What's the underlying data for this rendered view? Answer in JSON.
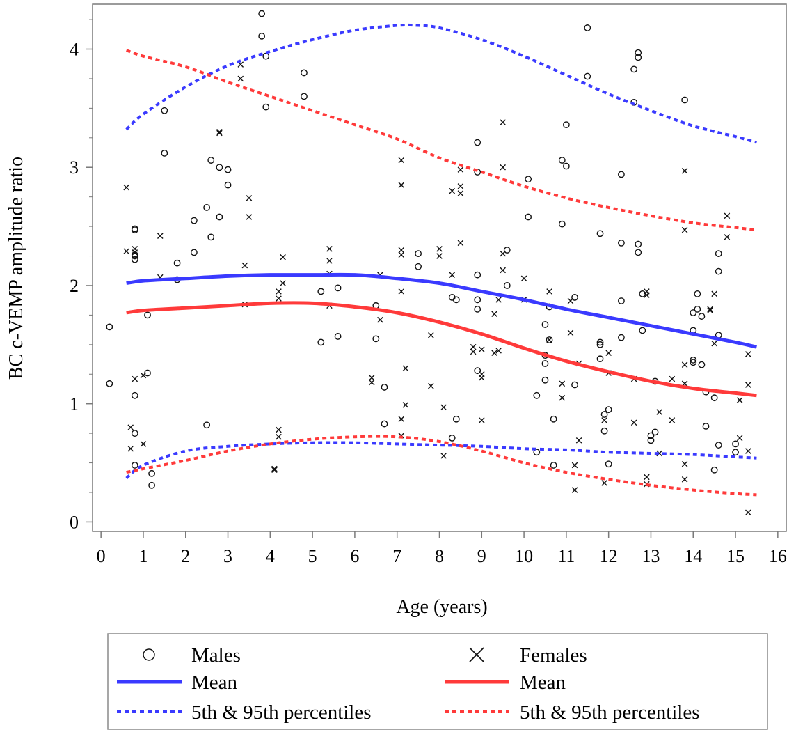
{
  "chart_data": {
    "type": "scatter",
    "title": "",
    "xlabel": "Age (years)",
    "ylabel": "BC c-VEMP amplitude ratio",
    "xlim": [
      -0.2,
      16.2
    ],
    "ylim": [
      -0.08,
      4.38
    ],
    "xticks": [
      "0",
      "1",
      "2",
      "3",
      "4",
      "5",
      "6",
      "7",
      "8",
      "9",
      "10",
      "11",
      "12",
      "13",
      "14",
      "15",
      "16"
    ],
    "yticks": [
      "0",
      "1",
      "2",
      "3",
      "4"
    ],
    "colors": {
      "blue": "#3a3aff",
      "red": "#ff3a3a",
      "marker": "#111111"
    },
    "legend": {
      "placement": "bottom",
      "entries": [
        {
          "label": "Males",
          "kind": "circle",
          "color": "#111111"
        },
        {
          "label": "Females",
          "kind": "cross",
          "color": "#111111"
        },
        {
          "label": "Mean",
          "kind": "solid",
          "color": "#3a3aff"
        },
        {
          "label": "Mean",
          "kind": "solid",
          "color": "#ff3a3a"
        },
        {
          "label": "5th & 95th percentiles",
          "kind": "dashed",
          "color": "#3a3aff"
        },
        {
          "label": "5th & 95th percentiles",
          "kind": "dashed",
          "color": "#ff3a3a"
        }
      ]
    },
    "series": [
      {
        "name": "Males",
        "kind": "circle",
        "points": [
          [
            0.2,
            1.65
          ],
          [
            0.2,
            1.17
          ],
          [
            0.8,
            2.48
          ],
          [
            0.8,
            2.47
          ],
          [
            0.8,
            2.26
          ],
          [
            0.8,
            2.25
          ],
          [
            0.8,
            2.22
          ],
          [
            0.8,
            1.07
          ],
          [
            0.8,
            0.75
          ],
          [
            0.8,
            0.48
          ],
          [
            1.1,
            1.75
          ],
          [
            1.1,
            1.26
          ],
          [
            1.2,
            0.41
          ],
          [
            1.2,
            0.31
          ],
          [
            1.5,
            3.48
          ],
          [
            1.5,
            3.12
          ],
          [
            1.8,
            2.19
          ],
          [
            1.8,
            2.05
          ],
          [
            2.2,
            2.55
          ],
          [
            2.2,
            2.28
          ],
          [
            2.5,
            2.66
          ],
          [
            2.5,
            0.82
          ],
          [
            2.6,
            3.06
          ],
          [
            2.6,
            2.41
          ],
          [
            2.8,
            3.0
          ],
          [
            2.8,
            2.58
          ],
          [
            3.0,
            2.98
          ],
          [
            3.0,
            2.85
          ],
          [
            3.8,
            4.3
          ],
          [
            3.8,
            4.11
          ],
          [
            3.9,
            3.94
          ],
          [
            3.9,
            3.51
          ],
          [
            4.8,
            3.8
          ],
          [
            4.8,
            3.6
          ],
          [
            5.2,
            1.95
          ],
          [
            5.2,
            1.52
          ],
          [
            5.6,
            1.98
          ],
          [
            5.6,
            1.57
          ],
          [
            6.5,
            1.83
          ],
          [
            6.5,
            1.55
          ],
          [
            6.7,
            1.14
          ],
          [
            6.7,
            0.83
          ],
          [
            7.5,
            2.27
          ],
          [
            7.5,
            2.16
          ],
          [
            8.3,
            1.9
          ],
          [
            8.3,
            0.71
          ],
          [
            8.4,
            1.88
          ],
          [
            8.4,
            0.87
          ],
          [
            8.9,
            3.21
          ],
          [
            8.9,
            2.96
          ],
          [
            8.9,
            2.09
          ],
          [
            8.9,
            1.88
          ],
          [
            8.9,
            1.8
          ],
          [
            8.9,
            1.28
          ],
          [
            9.6,
            2.3
          ],
          [
            9.6,
            2.0
          ],
          [
            10.1,
            2.9
          ],
          [
            10.1,
            2.58
          ],
          [
            10.3,
            1.07
          ],
          [
            10.3,
            0.59
          ],
          [
            10.5,
            1.67
          ],
          [
            10.5,
            1.41
          ],
          [
            10.5,
            1.34
          ],
          [
            10.5,
            1.2
          ],
          [
            10.6,
            1.82
          ],
          [
            10.6,
            1.54
          ],
          [
            10.7,
            0.87
          ],
          [
            10.7,
            0.48
          ],
          [
            10.9,
            3.06
          ],
          [
            10.9,
            2.52
          ],
          [
            11.0,
            3.36
          ],
          [
            11.0,
            3.01
          ],
          [
            11.2,
            1.9
          ],
          [
            11.2,
            1.16
          ],
          [
            11.5,
            4.18
          ],
          [
            11.5,
            3.77
          ],
          [
            11.8,
            2.44
          ],
          [
            11.8,
            1.52
          ],
          [
            11.8,
            1.5
          ],
          [
            11.8,
            1.38
          ],
          [
            11.9,
            0.91
          ],
          [
            11.9,
            0.77
          ],
          [
            12.0,
            0.95
          ],
          [
            12.0,
            0.49
          ],
          [
            12.3,
            2.94
          ],
          [
            12.3,
            2.36
          ],
          [
            12.3,
            1.87
          ],
          [
            12.3,
            1.56
          ],
          [
            12.6,
            3.83
          ],
          [
            12.6,
            3.55
          ],
          [
            12.7,
            3.97
          ],
          [
            12.7,
            3.93
          ],
          [
            12.7,
            2.35
          ],
          [
            12.7,
            2.28
          ],
          [
            12.8,
            1.93
          ],
          [
            12.8,
            1.62
          ],
          [
            13.0,
            0.73
          ],
          [
            13.0,
            0.69
          ],
          [
            13.1,
            1.19
          ],
          [
            13.1,
            0.76
          ],
          [
            13.8,
            3.57
          ],
          [
            14.0,
            1.77
          ],
          [
            14.0,
            1.62
          ],
          [
            14.0,
            1.37
          ],
          [
            14.0,
            1.35
          ],
          [
            14.1,
            1.93
          ],
          [
            14.1,
            1.8
          ],
          [
            14.2,
            1.74
          ],
          [
            14.2,
            1.33
          ],
          [
            14.3,
            1.1
          ],
          [
            14.3,
            0.81
          ],
          [
            14.5,
            1.05
          ],
          [
            14.5,
            0.44
          ],
          [
            14.6,
            2.27
          ],
          [
            14.6,
            2.12
          ],
          [
            14.6,
            1.58
          ],
          [
            14.6,
            0.65
          ],
          [
            15.0,
            0.66
          ],
          [
            15.0,
            0.59
          ]
        ]
      },
      {
        "name": "Females",
        "kind": "cross",
        "points": [
          [
            0.6,
            2.83
          ],
          [
            0.6,
            2.29
          ],
          [
            0.7,
            0.8
          ],
          [
            0.7,
            0.62
          ],
          [
            0.8,
            2.31
          ],
          [
            0.8,
            2.28
          ],
          [
            0.8,
            1.21
          ],
          [
            1.0,
            1.24
          ],
          [
            1.0,
            0.66
          ],
          [
            1.4,
            2.42
          ],
          [
            1.4,
            2.07
          ],
          [
            2.8,
            3.3
          ],
          [
            2.8,
            3.29
          ],
          [
            3.3,
            3.87
          ],
          [
            3.3,
            3.75
          ],
          [
            3.4,
            2.17
          ],
          [
            3.4,
            1.84
          ],
          [
            3.5,
            2.74
          ],
          [
            3.5,
            2.58
          ],
          [
            4.1,
            0.45
          ],
          [
            4.1,
            0.44
          ],
          [
            4.2,
            1.95
          ],
          [
            4.2,
            1.89
          ],
          [
            4.2,
            0.78
          ],
          [
            4.2,
            0.72
          ],
          [
            4.3,
            2.24
          ],
          [
            4.3,
            2.02
          ],
          [
            5.4,
            2.31
          ],
          [
            5.4,
            2.21
          ],
          [
            5.4,
            2.1
          ],
          [
            5.4,
            1.83
          ],
          [
            6.4,
            1.22
          ],
          [
            6.4,
            1.18
          ],
          [
            6.6,
            2.09
          ],
          [
            6.6,
            1.71
          ],
          [
            7.1,
            3.06
          ],
          [
            7.1,
            2.85
          ],
          [
            7.1,
            2.3
          ],
          [
            7.1,
            2.26
          ],
          [
            7.1,
            1.95
          ],
          [
            7.1,
            0.87
          ],
          [
            7.1,
            0.73
          ],
          [
            7.2,
            1.3
          ],
          [
            7.2,
            0.99
          ],
          [
            7.8,
            1.58
          ],
          [
            7.8,
            1.15
          ],
          [
            8.0,
            2.31
          ],
          [
            8.0,
            2.25
          ],
          [
            8.1,
            0.97
          ],
          [
            8.1,
            0.56
          ],
          [
            8.3,
            2.8
          ],
          [
            8.3,
            2.09
          ],
          [
            8.5,
            2.98
          ],
          [
            8.5,
            2.84
          ],
          [
            8.5,
            2.78
          ],
          [
            8.5,
            2.36
          ],
          [
            8.8,
            1.48
          ],
          [
            8.8,
            1.44
          ],
          [
            9.0,
            1.46
          ],
          [
            9.0,
            1.25
          ],
          [
            9.0,
            1.22
          ],
          [
            9.0,
            0.86
          ],
          [
            9.3,
            1.76
          ],
          [
            9.3,
            1.43
          ],
          [
            9.4,
            1.88
          ],
          [
            9.4,
            1.45
          ],
          [
            9.5,
            3.38
          ],
          [
            9.5,
            3.0
          ],
          [
            9.5,
            2.27
          ],
          [
            9.5,
            2.13
          ],
          [
            10.0,
            2.06
          ],
          [
            10.0,
            1.88
          ],
          [
            10.6,
            1.95
          ],
          [
            10.6,
            1.54
          ],
          [
            10.9,
            1.17
          ],
          [
            10.9,
            1.05
          ],
          [
            11.1,
            1.87
          ],
          [
            11.1,
            1.6
          ],
          [
            11.2,
            0.48
          ],
          [
            11.2,
            0.27
          ],
          [
            11.3,
            1.34
          ],
          [
            11.3,
            0.69
          ],
          [
            11.9,
            0.86
          ],
          [
            11.9,
            0.33
          ],
          [
            12.0,
            1.43
          ],
          [
            12.0,
            1.26
          ],
          [
            12.6,
            1.21
          ],
          [
            12.6,
            0.84
          ],
          [
            12.9,
            1.95
          ],
          [
            12.9,
            1.92
          ],
          [
            12.9,
            0.38
          ],
          [
            12.9,
            0.32
          ],
          [
            13.2,
            0.93
          ],
          [
            13.2,
            0.58
          ],
          [
            13.5,
            1.21
          ],
          [
            13.5,
            0.86
          ],
          [
            13.8,
            2.97
          ],
          [
            13.8,
            2.47
          ],
          [
            13.8,
            1.33
          ],
          [
            13.8,
            1.17
          ],
          [
            13.8,
            0.49
          ],
          [
            13.8,
            0.36
          ],
          [
            14.4,
            1.8
          ],
          [
            14.4,
            1.79
          ],
          [
            14.5,
            1.93
          ],
          [
            14.5,
            1.51
          ],
          [
            14.8,
            2.59
          ],
          [
            14.8,
            2.41
          ],
          [
            15.1,
            1.03
          ],
          [
            15.1,
            0.71
          ],
          [
            15.3,
            1.42
          ],
          [
            15.3,
            1.16
          ],
          [
            15.3,
            0.6
          ],
          [
            15.3,
            0.08
          ]
        ]
      },
      {
        "name": "Males Mean",
        "kind": "solid",
        "color": "#3a3aff",
        "x": [
          0.6,
          1,
          2,
          3,
          4,
          5,
          6,
          7,
          8,
          9,
          10,
          11,
          12,
          13,
          14,
          15,
          15.5
        ],
        "y": [
          2.02,
          2.04,
          2.06,
          2.08,
          2.09,
          2.09,
          2.09,
          2.06,
          2.02,
          1.95,
          1.88,
          1.8,
          1.73,
          1.66,
          1.59,
          1.52,
          1.48
        ]
      },
      {
        "name": "Females Mean",
        "kind": "solid",
        "color": "#ff3a3a",
        "x": [
          0.6,
          1,
          2,
          3,
          4,
          5,
          6,
          7,
          8,
          9,
          10,
          11,
          12,
          13,
          14,
          15,
          15.5
        ],
        "y": [
          1.77,
          1.79,
          1.81,
          1.83,
          1.85,
          1.85,
          1.82,
          1.77,
          1.69,
          1.59,
          1.47,
          1.36,
          1.27,
          1.19,
          1.13,
          1.09,
          1.07
        ]
      },
      {
        "name": "Males 95th percentile",
        "kind": "dashed",
        "color": "#3a3aff",
        "x": [
          0.6,
          1,
          2,
          3,
          4,
          5,
          6,
          7,
          7.5,
          8,
          9,
          10,
          11,
          12,
          13,
          14,
          15,
          15.5
        ],
        "y": [
          3.32,
          3.45,
          3.68,
          3.86,
          3.98,
          4.08,
          4.16,
          4.2,
          4.2,
          4.18,
          4.08,
          3.94,
          3.78,
          3.62,
          3.48,
          3.35,
          3.26,
          3.21
        ]
      },
      {
        "name": "Females 95th percentile",
        "kind": "dashed",
        "color": "#ff3a3a",
        "x": [
          0.6,
          1,
          2,
          3,
          4,
          5,
          6,
          7,
          8,
          9,
          10,
          11,
          12,
          13,
          14,
          15,
          15.5
        ],
        "y": [
          3.99,
          3.94,
          3.85,
          3.72,
          3.6,
          3.48,
          3.36,
          3.24,
          3.08,
          2.96,
          2.84,
          2.74,
          2.66,
          2.59,
          2.53,
          2.49,
          2.47
        ]
      },
      {
        "name": "Males 5th percentile",
        "kind": "dashed",
        "color": "#3a3aff",
        "x": [
          0.6,
          1,
          2,
          3,
          4,
          5,
          6,
          7,
          8,
          9,
          10,
          11,
          12,
          13,
          14,
          15,
          15.5
        ],
        "y": [
          0.37,
          0.48,
          0.6,
          0.64,
          0.66,
          0.67,
          0.67,
          0.66,
          0.65,
          0.64,
          0.62,
          0.61,
          0.59,
          0.58,
          0.57,
          0.55,
          0.54
        ]
      },
      {
        "name": "Females 5th percentile",
        "kind": "dashed",
        "color": "#ff3a3a",
        "x": [
          0.6,
          1,
          2,
          3,
          4,
          5,
          6,
          7,
          8,
          9,
          10,
          11,
          12,
          13,
          14,
          15,
          15.5
        ],
        "y": [
          0.42,
          0.45,
          0.52,
          0.6,
          0.66,
          0.7,
          0.72,
          0.72,
          0.68,
          0.6,
          0.5,
          0.42,
          0.36,
          0.31,
          0.27,
          0.24,
          0.23
        ]
      }
    ]
  }
}
